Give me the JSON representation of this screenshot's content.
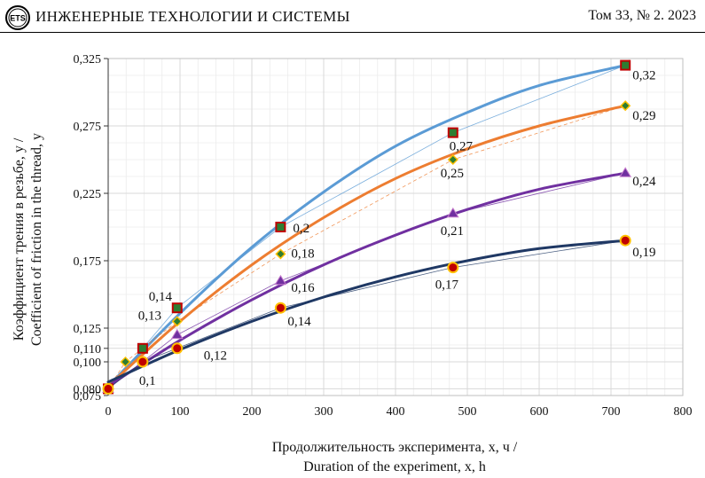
{
  "header": {
    "logo_text": "ETS",
    "journal": "ИНЖЕНЕРНЫЕ ТЕХНОЛОГИИ И СИСТЕМЫ",
    "issue": "Том 33, № 2. 2023"
  },
  "colors": {
    "blue": "#5b9bd5",
    "orange": "#ed7d31",
    "purple": "#7030a0",
    "navy": "#1f3864",
    "marker_red": "#c00000",
    "marker_green": "#2e7d32",
    "marker_yellow": "#ffc000",
    "grid": "#d9d9d9"
  },
  "chart_data": {
    "type": "scatter",
    "xlim": [
      0,
      800
    ],
    "ylim": [
      0.075,
      0.325
    ],
    "x_ticks": [
      0,
      100,
      200,
      300,
      400,
      500,
      600,
      700,
      800
    ],
    "x_tick_labels": [
      "0",
      "100",
      "200",
      "300",
      "400",
      "500",
      "600",
      "700",
      "800"
    ],
    "y_ticks": [
      0.075,
      0.08,
      0.1,
      0.11,
      0.125,
      0.175,
      0.225,
      0.275,
      0.325
    ],
    "y_tick_labels": [
      "0,075",
      "0,080",
      "0,100",
      "0,110",
      "0,125",
      "0,175",
      "0,225",
      "0,275",
      "0,325"
    ],
    "grid": true,
    "xlabel_line1": "Продолжительность эксперимента, x, ч /",
    "xlabel_line2": "Duration of the experiment, x, h",
    "ylabel_line1": "Коэффициент трения в резьбе, y /",
    "ylabel_line2": "Coefficient of friction in the thread, y",
    "series": [
      {
        "color": "#5b9bd5",
        "marker": "square",
        "x": [
          0,
          48,
          96,
          240,
          480,
          720
        ],
        "y": [
          0.08,
          0.11,
          0.14,
          0.2,
          0.27,
          0.32
        ],
        "trend": [
          [
            0,
            0.082
          ],
          [
            100,
            0.136
          ],
          [
            200,
            0.185
          ],
          [
            300,
            0.226
          ],
          [
            400,
            0.26
          ],
          [
            500,
            0.285
          ],
          [
            600,
            0.305
          ],
          [
            720,
            0.32
          ]
        ],
        "labels": [
          {
            "i": 2,
            "text": "0,14"
          },
          {
            "i": 3,
            "text": "0,2"
          },
          {
            "i": 4,
            "text": "0,27"
          },
          {
            "i": 5,
            "text": "0,32"
          }
        ]
      },
      {
        "color": "#ed7d31",
        "marker": "diamond",
        "x": [
          0,
          24,
          96,
          240,
          480,
          720
        ],
        "y": [
          0.08,
          0.1,
          0.13,
          0.18,
          0.25,
          0.29
        ],
        "trend": [
          [
            0,
            0.082
          ],
          [
            100,
            0.13
          ],
          [
            200,
            0.172
          ],
          [
            300,
            0.207
          ],
          [
            400,
            0.236
          ],
          [
            500,
            0.258
          ],
          [
            600,
            0.275
          ],
          [
            720,
            0.29
          ]
        ],
        "labels": [
          {
            "i": 2,
            "text": "0,13"
          },
          {
            "i": 3,
            "text": "0,18"
          },
          {
            "i": 4,
            "text": "0,25"
          },
          {
            "i": 5,
            "text": "0,29"
          }
        ]
      },
      {
        "color": "#7030a0",
        "marker": "triangle",
        "x": [
          0,
          48,
          96,
          240,
          480,
          720
        ],
        "y": [
          0.08,
          0.1,
          0.12,
          0.16,
          0.21,
          0.24
        ],
        "trend": [
          [
            0,
            0.082
          ],
          [
            100,
            0.116
          ],
          [
            200,
            0.146
          ],
          [
            300,
            0.172
          ],
          [
            400,
            0.194
          ],
          [
            500,
            0.213
          ],
          [
            600,
            0.228
          ],
          [
            720,
            0.24
          ]
        ],
        "labels": [
          {
            "i": 2,
            "text": "0,12"
          },
          {
            "i": 3,
            "text": "0,16"
          },
          {
            "i": 4,
            "text": "0,21"
          },
          {
            "i": 5,
            "text": "0,24"
          }
        ]
      },
      {
        "color": "#1f3864",
        "marker": "circle",
        "x": [
          0,
          48,
          96,
          240,
          480,
          720
        ],
        "y": [
          0.08,
          0.1,
          0.11,
          0.14,
          0.17,
          0.19
        ],
        "trend": [
          [
            0,
            0.085
          ],
          [
            100,
            0.109
          ],
          [
            200,
            0.13
          ],
          [
            300,
            0.148
          ],
          [
            400,
            0.163
          ],
          [
            500,
            0.175
          ],
          [
            600,
            0.184
          ],
          [
            720,
            0.19
          ]
        ],
        "labels": [
          {
            "i": 1,
            "text": "0,1"
          },
          {
            "i": 3,
            "text": "0,14"
          },
          {
            "i": 4,
            "text": "0,17"
          },
          {
            "i": 5,
            "text": "0,19"
          }
        ]
      }
    ]
  }
}
